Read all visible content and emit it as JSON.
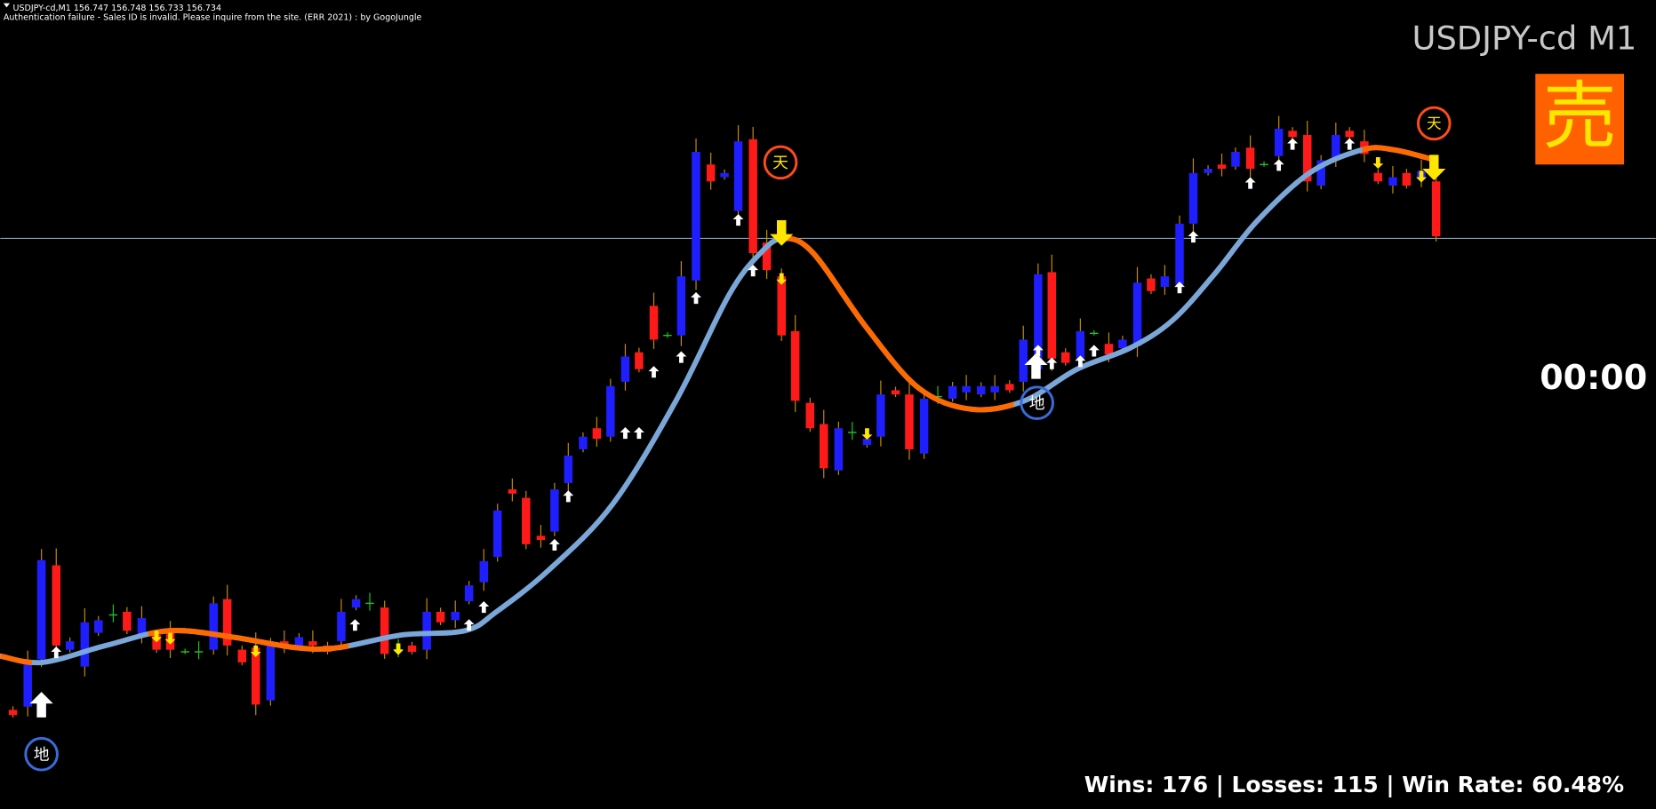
{
  "header": {
    "symbol_line": "USDJPY-cd,M1  156.747 156.748 156.733 156.734",
    "message": "Authentication failure - Sales ID is invalid. Please inquire from the site. (ERR 2021) : by GogoJungle"
  },
  "chart": {
    "symbol": "USDJPY-cd M1",
    "signal": "売",
    "timer": "00:00",
    "stats": "Wins: 176 | Losses: 115 | Win Rate: 60.48%",
    "top_marker": "天",
    "bottom_marker": "地"
  }
}
